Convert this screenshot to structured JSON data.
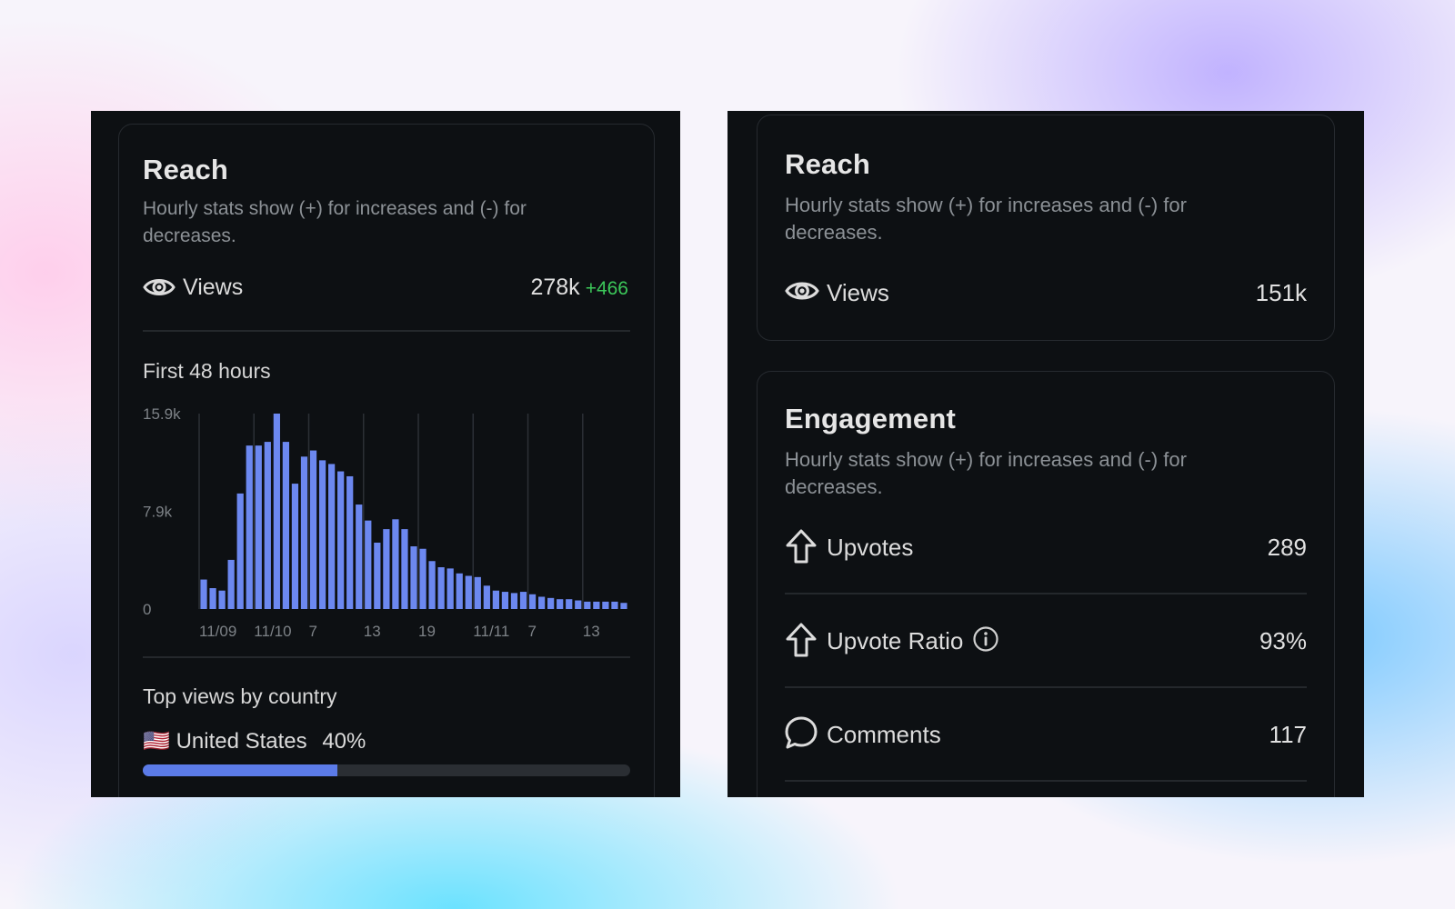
{
  "left_panel": {
    "title": "Reach",
    "description": "Hourly stats show (+) for increases and (-) for decreases.",
    "views": {
      "label": "Views",
      "value": "278k",
      "delta": "+466"
    },
    "chart_section_label": "First 48 hours",
    "countries_section_label": "Top views by country",
    "country": {
      "flag": "🇺🇸",
      "name": "United States",
      "percent_label": "40%",
      "percent": 40
    }
  },
  "right_panel": {
    "reach": {
      "title": "Reach",
      "description": "Hourly stats show (+) for increases and (-) for decreases.",
      "views": {
        "label": "Views",
        "value": "151k"
      }
    },
    "engagement": {
      "title": "Engagement",
      "description": "Hourly stats show (+) for increases and (-) for decreases.",
      "upvotes": {
        "label": "Upvotes",
        "value": "289",
        "icon": "upvote-arrow-icon"
      },
      "upvote_ratio": {
        "label": "Upvote Ratio",
        "value": "93%",
        "icon": "upvote-arrow-icon",
        "info_icon": "info-icon"
      },
      "comments": {
        "label": "Comments",
        "value": "117",
        "icon": "comment-bubble-icon"
      }
    }
  },
  "colors": {
    "bar": "#6c88f0",
    "delta_positive": "#3cc85a",
    "panel_bg": "#0d1013"
  },
  "chart_data": {
    "type": "bar",
    "title": "First 48 hours",
    "x_tick_labels": [
      "11/09",
      "11/10",
      "7",
      "13",
      "19",
      "11/11",
      "7",
      "13"
    ],
    "y_tick_labels": [
      "15.9k",
      "7.9k",
      "0"
    ],
    "ylim": [
      0,
      15900
    ],
    "grid": "vertical",
    "values": [
      2400,
      1700,
      1500,
      4000,
      9400,
      13300,
      13300,
      13600,
      15900,
      13600,
      10200,
      12400,
      12900,
      12100,
      11800,
      11200,
      10800,
      8500,
      7200,
      5400,
      6500,
      7300,
      6500,
      5100,
      4900,
      3900,
      3400,
      3300,
      2900,
      2700,
      2600,
      1900,
      1500,
      1400,
      1300,
      1400,
      1200,
      1000,
      900,
      800,
      800,
      700,
      600,
      600,
      600,
      600,
      500
    ]
  }
}
